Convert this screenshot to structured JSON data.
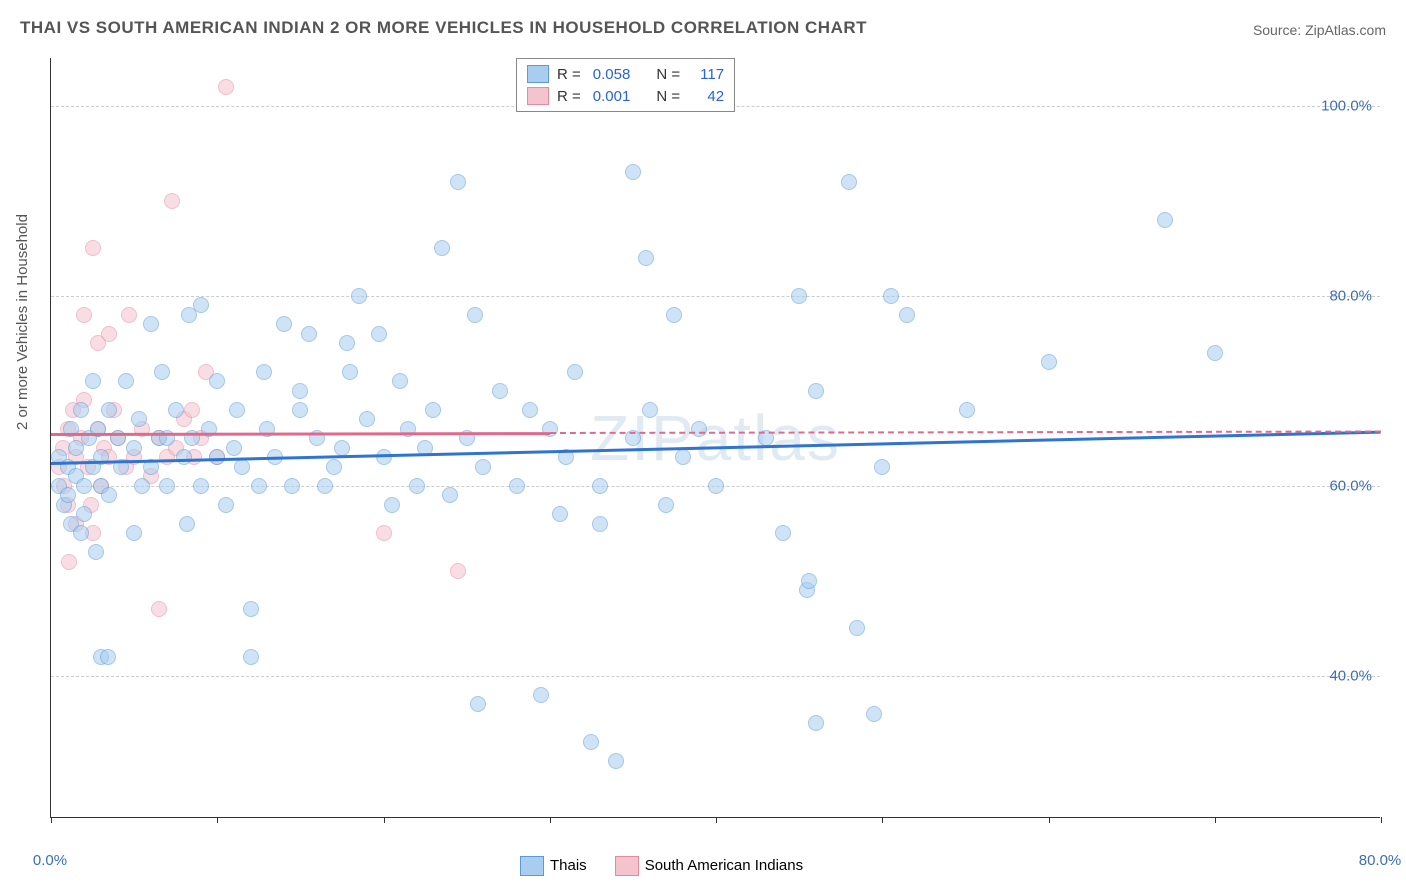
{
  "title": "THAI VS SOUTH AMERICAN INDIAN 2 OR MORE VEHICLES IN HOUSEHOLD CORRELATION CHART",
  "source_label": "Source:",
  "source_value": "ZipAtlas.com",
  "watermark": "ZIPatlas",
  "y_axis_label": "2 or more Vehicles in Household",
  "chart": {
    "type": "scatter",
    "xlim": [
      0,
      80
    ],
    "ylim": [
      25,
      105
    ],
    "x_ticks": [
      0,
      10,
      20,
      30,
      40,
      50,
      60,
      70,
      80
    ],
    "x_tick_labels": [
      "0.0%",
      "",
      "",
      "",
      "",
      "",
      "",
      "",
      "80.0%"
    ],
    "y_ticks": [
      40,
      60,
      80,
      100
    ],
    "y_tick_labels": [
      "40.0%",
      "60.0%",
      "80.0%",
      "100.0%"
    ],
    "background_color": "#ffffff",
    "grid_color": "#cccccc",
    "axis_text_color": "#3b6fb5",
    "point_radius": 8,
    "point_border_width": 1.5,
    "point_opacity": 0.55,
    "series": [
      {
        "name": "Thais",
        "fill": "#a9cdf0",
        "border": "#5a9bd5",
        "R": "0.058",
        "N": "117",
        "trend": {
          "y_start": 62.5,
          "y_end": 65.8,
          "color": "#2f74d0"
        },
        "points": [
          [
            0.5,
            63
          ],
          [
            0.5,
            60
          ],
          [
            0.8,
            58
          ],
          [
            1,
            62
          ],
          [
            1,
            59
          ],
          [
            1.2,
            66
          ],
          [
            1.2,
            56
          ],
          [
            1.5,
            64
          ],
          [
            1.5,
            61
          ],
          [
            1.8,
            55
          ],
          [
            1.8,
            68
          ],
          [
            2,
            60
          ],
          [
            2,
            57
          ],
          [
            2.3,
            65
          ],
          [
            2.5,
            62
          ],
          [
            2.5,
            71
          ],
          [
            2.7,
            53
          ],
          [
            2.8,
            66
          ],
          [
            3,
            63
          ],
          [
            3,
            60
          ],
          [
            3,
            42
          ],
          [
            3.4,
            42
          ],
          [
            3.5,
            68
          ],
          [
            3.5,
            59
          ],
          [
            4,
            65
          ],
          [
            4.2,
            62
          ],
          [
            4.5,
            71
          ],
          [
            5,
            55
          ],
          [
            5,
            64
          ],
          [
            5.3,
            67
          ],
          [
            5.5,
            60
          ],
          [
            6,
            62
          ],
          [
            6,
            77
          ],
          [
            6.5,
            65
          ],
          [
            6.7,
            72
          ],
          [
            7,
            60
          ],
          [
            7,
            65
          ],
          [
            7.5,
            68
          ],
          [
            8,
            63
          ],
          [
            8.2,
            56
          ],
          [
            8.3,
            78
          ],
          [
            8.5,
            65
          ],
          [
            9,
            79
          ],
          [
            9,
            60
          ],
          [
            9.5,
            66
          ],
          [
            10,
            63
          ],
          [
            10,
            71
          ],
          [
            10.5,
            58
          ],
          [
            11,
            64
          ],
          [
            11.2,
            68
          ],
          [
            11.5,
            62
          ],
          [
            12,
            42
          ],
          [
            12,
            47
          ],
          [
            12.5,
            60
          ],
          [
            12.8,
            72
          ],
          [
            13,
            66
          ],
          [
            13.5,
            63
          ],
          [
            14,
            77
          ],
          [
            14.5,
            60
          ],
          [
            15,
            68
          ],
          [
            15,
            70
          ],
          [
            15.5,
            76
          ],
          [
            16,
            65
          ],
          [
            16.5,
            60
          ],
          [
            17,
            62
          ],
          [
            17.5,
            64
          ],
          [
            17.8,
            75
          ],
          [
            18,
            72
          ],
          [
            18.5,
            80
          ],
          [
            19,
            67
          ],
          [
            19.7,
            76
          ],
          [
            20,
            63
          ],
          [
            20.5,
            58
          ],
          [
            21,
            71
          ],
          [
            21.5,
            66
          ],
          [
            22,
            60
          ],
          [
            22.5,
            64
          ],
          [
            23,
            68
          ],
          [
            23.5,
            85
          ],
          [
            24,
            59
          ],
          [
            24.5,
            92
          ],
          [
            25,
            65
          ],
          [
            25.5,
            78
          ],
          [
            25.7,
            37
          ],
          [
            26,
            62
          ],
          [
            27,
            70
          ],
          [
            28,
            60
          ],
          [
            28.8,
            68
          ],
          [
            29.5,
            38
          ],
          [
            30,
            66
          ],
          [
            30.6,
            57
          ],
          [
            31,
            63
          ],
          [
            31.5,
            72
          ],
          [
            32.5,
            33
          ],
          [
            33,
            60
          ],
          [
            33,
            56
          ],
          [
            34,
            31
          ],
          [
            35,
            65
          ],
          [
            35,
            93
          ],
          [
            35.8,
            84
          ],
          [
            36,
            68
          ],
          [
            37,
            58
          ],
          [
            37.5,
            78
          ],
          [
            38,
            63
          ],
          [
            39,
            66
          ],
          [
            40,
            60
          ],
          [
            43,
            65
          ],
          [
            44,
            55
          ],
          [
            45,
            80
          ],
          [
            45.5,
            49
          ],
          [
            45.6,
            50
          ],
          [
            46,
            35
          ],
          [
            46,
            70
          ],
          [
            48,
            92
          ],
          [
            48.5,
            45
          ],
          [
            49.5,
            36
          ],
          [
            50,
            62
          ],
          [
            50.5,
            80
          ],
          [
            51.5,
            78
          ],
          [
            55.1,
            68
          ],
          [
            60,
            73
          ],
          [
            67,
            88
          ],
          [
            70,
            74
          ]
        ]
      },
      {
        "name": "South American Indians",
        "fill": "#f4c4ce",
        "border": "#e68aa0",
        "R": "0.001",
        "N": "42",
        "trend": {
          "y_start": 65.5,
          "y_end": 65.75,
          "color": "#e06a8c",
          "solid_until_x": 30
        },
        "points": [
          [
            0.5,
            62
          ],
          [
            0.7,
            64
          ],
          [
            0.8,
            60
          ],
          [
            1,
            66
          ],
          [
            1,
            58
          ],
          [
            1.1,
            52
          ],
          [
            1.3,
            68
          ],
          [
            1.5,
            63
          ],
          [
            1.5,
            56
          ],
          [
            1.8,
            65
          ],
          [
            2,
            69
          ],
          [
            2,
            78
          ],
          [
            2.2,
            62
          ],
          [
            2.4,
            58
          ],
          [
            2.5,
            55
          ],
          [
            2.5,
            85
          ],
          [
            2.8,
            66
          ],
          [
            2.8,
            75
          ],
          [
            3,
            60
          ],
          [
            3.2,
            64
          ],
          [
            3.5,
            63
          ],
          [
            3.5,
            76
          ],
          [
            3.8,
            68
          ],
          [
            4,
            65
          ],
          [
            4.5,
            62
          ],
          [
            4.7,
            78
          ],
          [
            5,
            63
          ],
          [
            5.5,
            66
          ],
          [
            6,
            61
          ],
          [
            6.5,
            65
          ],
          [
            6.5,
            47
          ],
          [
            7,
            63
          ],
          [
            7.3,
            90
          ],
          [
            7.5,
            64
          ],
          [
            8,
            67
          ],
          [
            8.6,
            63
          ],
          [
            8.5,
            68
          ],
          [
            9,
            65
          ],
          [
            9.3,
            72
          ],
          [
            10,
            63
          ],
          [
            10.5,
            102
          ],
          [
            24.5,
            51
          ],
          [
            20,
            55
          ]
        ]
      }
    ]
  },
  "legend_stats": {
    "r_label": "R =",
    "n_label": "N ="
  },
  "bottom_legend": {
    "items": [
      "Thais",
      "South American Indians"
    ]
  }
}
